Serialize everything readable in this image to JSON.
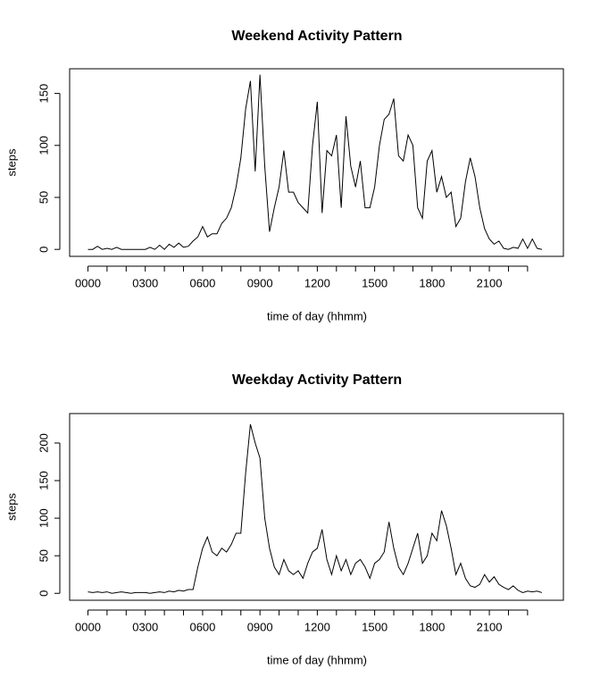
{
  "chart_data": [
    {
      "type": "line",
      "title": "Weekend Activity Pattern",
      "x_label": "time of day (hhmm)",
      "y_label": "steps",
      "color": "#000000",
      "x": [
        0,
        0.25,
        0.5,
        0.75,
        1,
        1.25,
        1.5,
        1.75,
        2,
        2.25,
        2.5,
        2.75,
        3,
        3.25,
        3.5,
        3.75,
        4,
        4.25,
        4.5,
        4.75,
        5,
        5.25,
        5.5,
        5.75,
        6,
        6.25,
        6.5,
        6.75,
        7,
        7.25,
        7.5,
        7.75,
        8,
        8.25,
        8.5,
        8.75,
        9,
        9.25,
        9.5,
        9.75,
        10,
        10.25,
        10.5,
        10.75,
        11,
        11.25,
        11.5,
        11.75,
        12,
        12.25,
        12.5,
        12.75,
        13,
        13.25,
        13.5,
        13.75,
        14,
        14.25,
        14.5,
        14.75,
        15,
        15.25,
        15.5,
        15.75,
        16,
        16.25,
        16.5,
        16.75,
        17,
        17.25,
        17.5,
        17.75,
        18,
        18.25,
        18.5,
        18.75,
        19,
        19.25,
        19.5,
        19.75,
        20,
        20.25,
        20.5,
        20.75,
        21,
        21.25,
        21.5,
        21.75,
        22,
        22.25,
        22.5,
        22.75,
        23,
        23.25,
        23.5,
        23.75
      ],
      "values": [
        0,
        0,
        3,
        0,
        1,
        0,
        2,
        0,
        0,
        0,
        0,
        0,
        0,
        2,
        0,
        4,
        0,
        5,
        2,
        6,
        2,
        3,
        8,
        12,
        22,
        12,
        15,
        15,
        25,
        30,
        40,
        60,
        88,
        135,
        162,
        75,
        168,
        80,
        17,
        40,
        60,
        95,
        55,
        55,
        45,
        40,
        35,
        100,
        142,
        35,
        95,
        90,
        110,
        40,
        128,
        80,
        60,
        85,
        40,
        40,
        60,
        100,
        125,
        130,
        145,
        90,
        85,
        110,
        100,
        40,
        30,
        85,
        95,
        55,
        70,
        50,
        55,
        22,
        30,
        65,
        88,
        70,
        40,
        20,
        10,
        5,
        8,
        1,
        0,
        2,
        1,
        10,
        1,
        10,
        1,
        0
      ],
      "xlim": [
        -0.957,
        24.874
      ],
      "ylim": [
        -6.7,
        173.7
      ],
      "xticks": [
        {
          "value": 0,
          "label": "0000"
        },
        {
          "value": 3,
          "label": "0300"
        },
        {
          "value": 6,
          "label": "0600"
        },
        {
          "value": 9,
          "label": "0900"
        },
        {
          "value": 12,
          "label": "1200"
        },
        {
          "value": 15,
          "label": "1500"
        },
        {
          "value": 18,
          "label": "1800"
        },
        {
          "value": 21,
          "label": "2100"
        }
      ],
      "xminor": [
        1,
        2,
        4,
        5,
        7,
        8,
        10,
        11,
        13,
        14,
        16,
        17,
        19,
        20,
        22,
        23
      ],
      "yticks": [
        0,
        50,
        100,
        150
      ]
    },
    {
      "type": "line",
      "title": "Weekday Activity Pattern",
      "x_label": "time of day (hhmm)",
      "y_label": "steps",
      "color": "#000000",
      "x": [
        0,
        0.25,
        0.5,
        0.75,
        1,
        1.25,
        1.5,
        1.75,
        2,
        2.25,
        2.5,
        2.75,
        3,
        3.25,
        3.5,
        3.75,
        4,
        4.25,
        4.5,
        4.75,
        5,
        5.25,
        5.5,
        5.75,
        6,
        6.25,
        6.5,
        6.75,
        7,
        7.25,
        7.5,
        7.75,
        8,
        8.25,
        8.5,
        8.75,
        9,
        9.25,
        9.5,
        9.75,
        10,
        10.25,
        10.5,
        10.75,
        11,
        11.25,
        11.5,
        11.75,
        12,
        12.25,
        12.5,
        12.75,
        13,
        13.25,
        13.5,
        13.75,
        14,
        14.25,
        14.5,
        14.75,
        15,
        15.25,
        15.5,
        15.75,
        16,
        16.25,
        16.5,
        16.75,
        17,
        17.25,
        17.5,
        17.75,
        18,
        18.25,
        18.5,
        18.75,
        19,
        19.25,
        19.5,
        19.75,
        20,
        20.25,
        20.5,
        20.75,
        21,
        21.25,
        21.5,
        21.75,
        22,
        22.25,
        22.5,
        22.75,
        23,
        23.25,
        23.5,
        23.75
      ],
      "values": [
        2,
        1,
        2,
        1,
        2,
        0,
        1,
        2,
        1,
        0,
        1,
        1,
        1,
        0,
        1,
        2,
        1,
        3,
        2,
        4,
        3,
        5,
        5,
        35,
        60,
        75,
        55,
        50,
        60,
        55,
        65,
        80,
        80,
        160,
        225,
        200,
        180,
        100,
        60,
        35,
        25,
        45,
        30,
        25,
        30,
        20,
        40,
        55,
        60,
        85,
        45,
        25,
        50,
        30,
        45,
        25,
        40,
        45,
        35,
        20,
        40,
        45,
        55,
        95,
        60,
        35,
        25,
        40,
        60,
        80,
        40,
        50,
        80,
        70,
        110,
        90,
        60,
        25,
        40,
        20,
        10,
        8,
        12,
        25,
        15,
        22,
        12,
        8,
        5,
        10,
        4,
        1,
        3,
        2,
        3,
        1
      ],
      "xlim": [
        -0.957,
        24.874
      ],
      "ylim": [
        -9.2,
        239.2
      ],
      "xticks": [
        {
          "value": 0,
          "label": "0000"
        },
        {
          "value": 3,
          "label": "0300"
        },
        {
          "value": 6,
          "label": "0600"
        },
        {
          "value": 9,
          "label": "0900"
        },
        {
          "value": 12,
          "label": "1200"
        },
        {
          "value": 15,
          "label": "1500"
        },
        {
          "value": 18,
          "label": "1800"
        },
        {
          "value": 21,
          "label": "2100"
        }
      ],
      "xminor": [
        1,
        2,
        4,
        5,
        7,
        8,
        10,
        11,
        13,
        14,
        16,
        17,
        19,
        20,
        22,
        23
      ],
      "yticks": [
        0,
        50,
        100,
        150,
        200
      ]
    }
  ]
}
